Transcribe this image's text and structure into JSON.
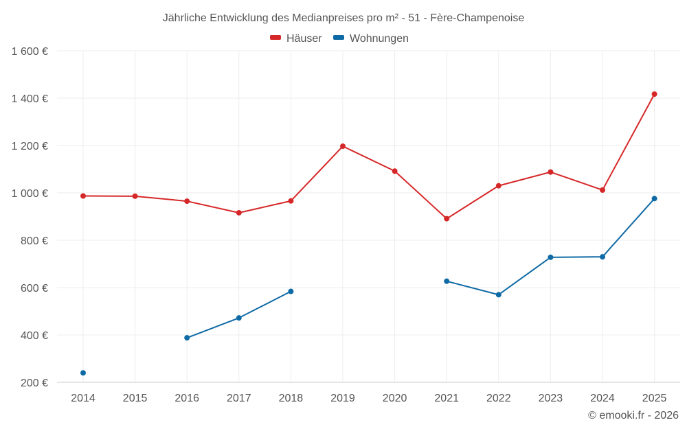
{
  "chart_data": {
    "type": "line",
    "title": "Jährliche Entwicklung des Medianpreises pro m² - 51 - Fère-Champenoise",
    "categories": [
      "2014",
      "2015",
      "2016",
      "2017",
      "2018",
      "2019",
      "2020",
      "2021",
      "2022",
      "2023",
      "2024",
      "2025"
    ],
    "y_ticks": [
      "200 €",
      "400 €",
      "600 €",
      "800 €",
      "1 000 €",
      "1 200 €",
      "1 400 €",
      "1 600 €"
    ],
    "ylim": [
      200,
      1600
    ],
    "legend_position": "top-center",
    "series": [
      {
        "name": "Häuser",
        "color": "#d62728",
        "values": [
          987,
          986,
          965,
          916,
          966,
          1197,
          1092,
          891,
          1030,
          1088,
          1012,
          1417
        ]
      },
      {
        "name": "Wohnungen",
        "color": "#0e6aa5",
        "values": [
          240,
          null,
          388,
          472,
          584,
          null,
          null,
          627,
          570,
          728,
          730,
          976
        ]
      }
    ],
    "credit": "© emooki.fr - 2026"
  }
}
